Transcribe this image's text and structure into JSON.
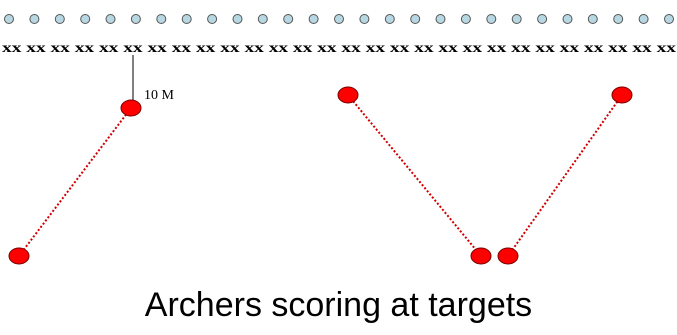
{
  "target_row": {
    "count": 27,
    "fill": "#b7d7e3",
    "stroke": "#555555"
  },
  "line_row": {
    "text": "xx xx xx xx xx xx xx xx xx xx xx xx xx xx xx xx xx xx xx xx xx xx xx xx xx xx xx xx",
    "color": "#000000"
  },
  "distance_label": "10 M",
  "colors": {
    "archer": "#ff0000",
    "archer_outline": "#7a0000",
    "path": "#d00000"
  },
  "caption": "Archers scoring at targets"
}
